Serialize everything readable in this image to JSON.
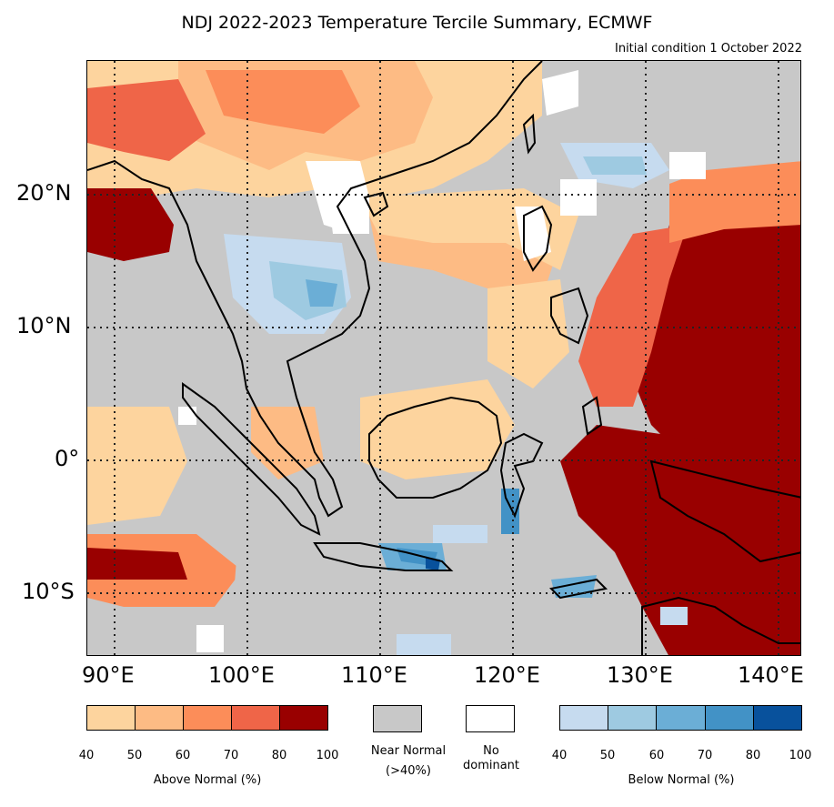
{
  "title": "NDJ 2022-2023 Temperature Tercile Summary, ECMWF",
  "subtitle": "Initial condition 1 October 2022",
  "axes": {
    "lat_labels": [
      "20°N",
      "10°N",
      "0°",
      "10°S"
    ],
    "lon_labels": [
      "90°E",
      "100°E",
      "110°E",
      "120°E",
      "130°E",
      "140°E"
    ]
  },
  "colors": {
    "above": [
      "#fdd49e",
      "#fdbb84",
      "#fc8d59",
      "#ef6548",
      "#990000"
    ],
    "below": [
      "#c6dbef",
      "#9ecae1",
      "#6baed6",
      "#4292c6",
      "#08519c"
    ],
    "near_normal": "#c8c8c8",
    "no_dominant": "#ffffff",
    "coast": "#000000"
  },
  "legend": {
    "above": {
      "ticks": [
        "40",
        "50",
        "60",
        "70",
        "80",
        "100"
      ],
      "label": "Above Normal (%)"
    },
    "below": {
      "ticks": [
        "40",
        "50",
        "60",
        "70",
        "80",
        "100"
      ],
      "label": "Below Normal (%)"
    },
    "near_normal": {
      "line1": "Near Normal",
      "line2": "(>40%)"
    },
    "no_dominant": {
      "line1": "No",
      "line2": "dominant"
    }
  }
}
